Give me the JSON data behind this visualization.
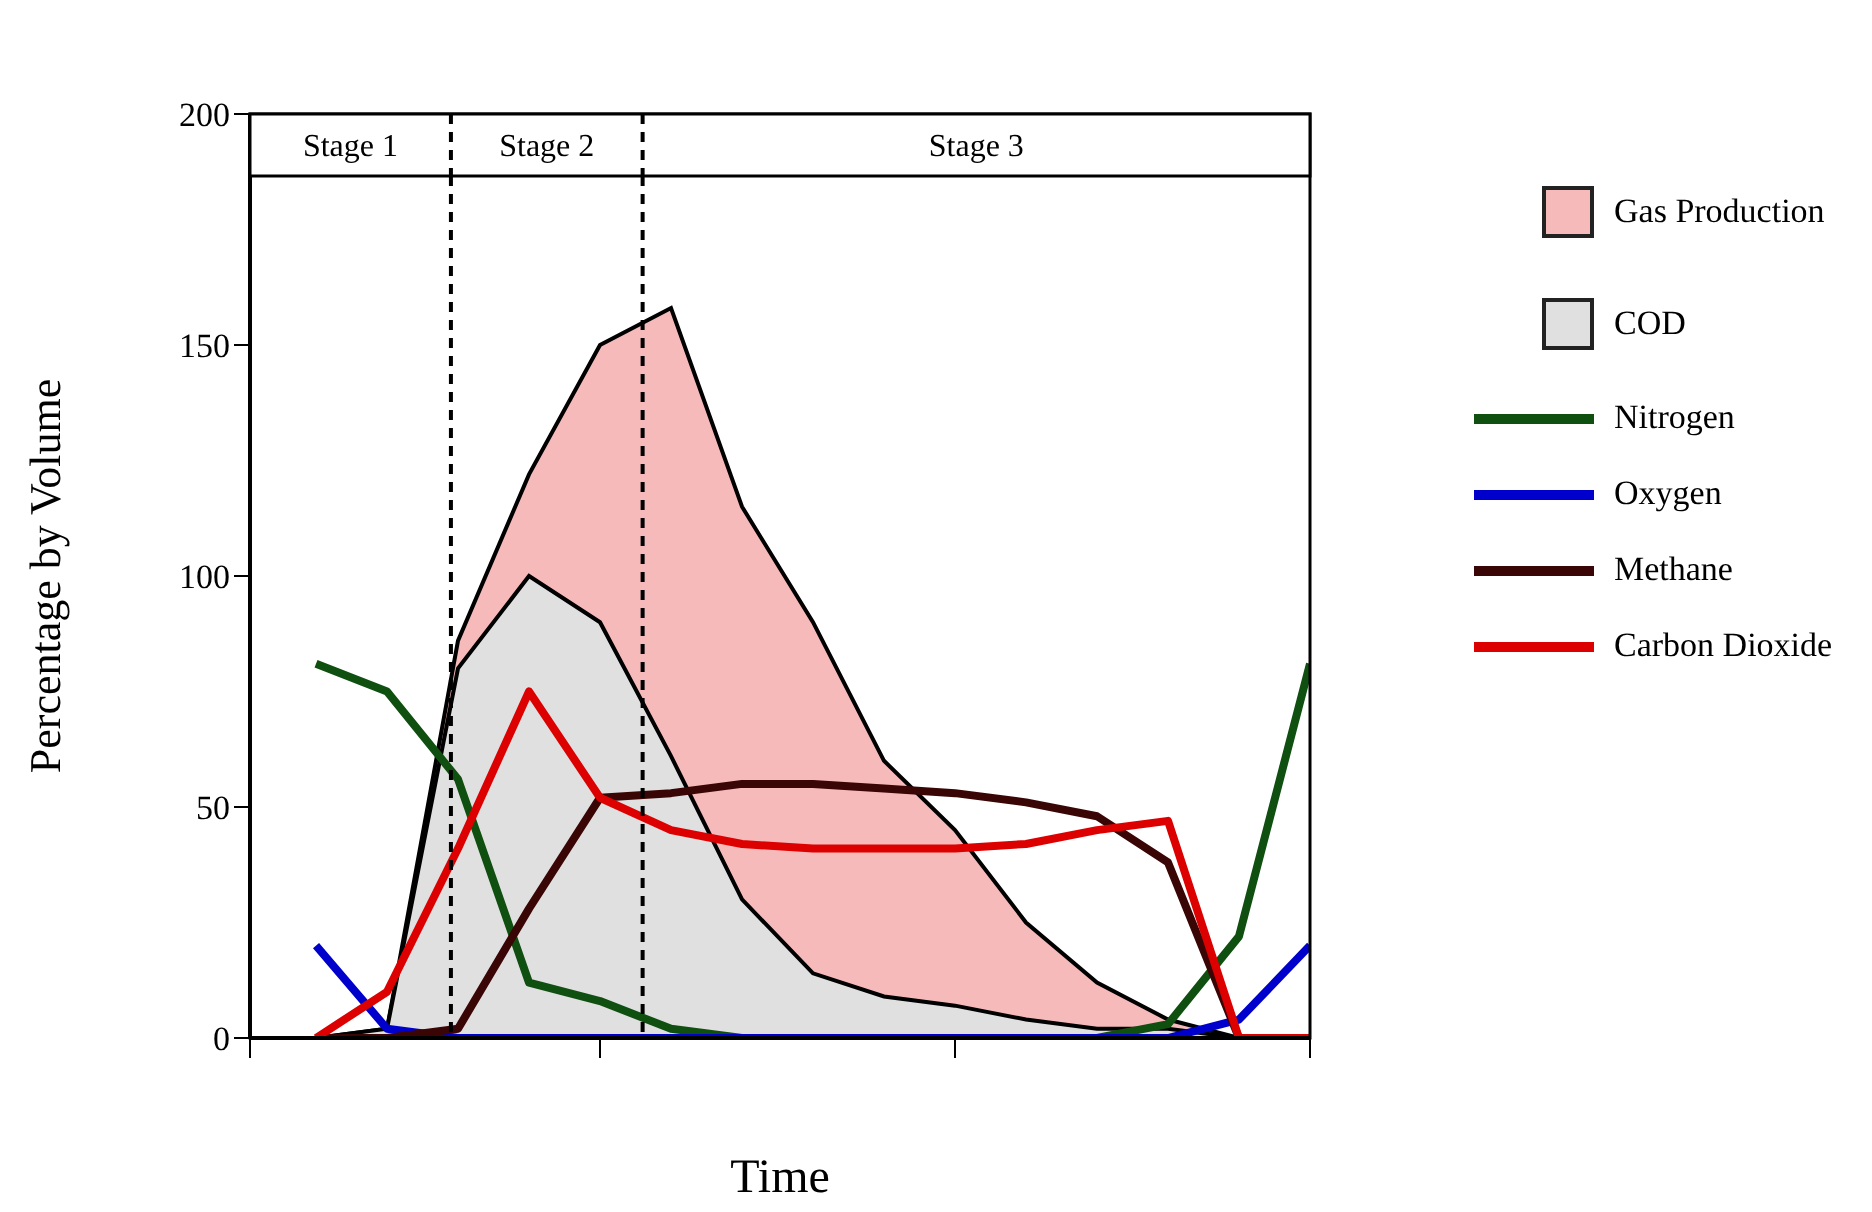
{
  "chart_data": {
    "type": "line",
    "xlabel": "Time",
    "ylabel": "Percentage by Volume",
    "categories": [
      null,
      null,
      null,
      null,
      null,
      null,
      null,
      null,
      null,
      null,
      null,
      null,
      null,
      null,
      null
    ],
    "series": [
      {
        "name": "Gas Production",
        "type": "area",
        "color": "#f7baba",
        "values": [
          0,
          2,
          86,
          122,
          150,
          158,
          115,
          90,
          60,
          45,
          25,
          12,
          4,
          0,
          0
        ]
      },
      {
        "name": "COD",
        "type": "area",
        "color": "#e0e0e0",
        "values": [
          0,
          2,
          80,
          100,
          90,
          61,
          30,
          14,
          9,
          7,
          4,
          2,
          2,
          0,
          0
        ]
      },
      {
        "name": "Nitrogen",
        "color": "#0f4f0f",
        "values": [
          81,
          75,
          56,
          12,
          8,
          2,
          0,
          0,
          0,
          0,
          0,
          0,
          3,
          22,
          81
        ]
      },
      {
        "name": "Oxygen",
        "color": "#0000cc",
        "values": [
          20,
          2,
          0,
          0,
          0,
          0,
          0,
          0,
          0,
          0,
          0,
          0,
          0,
          4,
          20
        ]
      },
      {
        "name": "Methane",
        "color": "#3a0505",
        "values": [
          0,
          0,
          2,
          28,
          52,
          53,
          55,
          55,
          54,
          53,
          51,
          48,
          38,
          0,
          0
        ]
      },
      {
        "name": "Carbon Dioxide",
        "color": "#dd0000",
        "values": [
          0,
          10,
          41,
          75,
          52,
          45,
          42,
          41,
          41,
          41,
          42,
          45,
          47,
          0,
          0
        ]
      }
    ],
    "ylim": [
      0,
      200
    ],
    "yticks": [
      0,
      50,
      100,
      150,
      200
    ],
    "annotations": [
      "Stage 1",
      "Stage 2",
      "Stage 3"
    ],
    "legend": "right",
    "marker": "none",
    "line_style": "solid"
  }
}
